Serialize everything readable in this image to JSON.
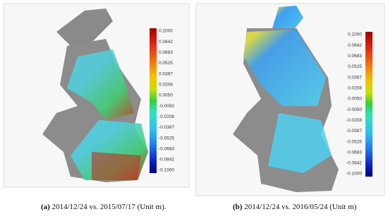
{
  "panels": [
    {
      "label": "(a)",
      "caption": "2014/12/24 vs. 2015/07/17 (Unit m).",
      "colorbar_labels": [
        "0.1000",
        "0.0842",
        "0.0683",
        "0.0525",
        "0.0367",
        "0.0208",
        "0.0050",
        "-0.0050",
        "-0.0208",
        "-0.0367",
        "-0.0525",
        "-0.0683",
        "-0.0842",
        "-0.1000"
      ]
    },
    {
      "label": "(b)",
      "caption": "2014/12/24 vs. 2016/05/24 (Unit m)",
      "colorbar_labels": [
        "0.1000",
        "0.0842",
        "0.0683",
        "0.0525",
        "0.0367",
        "0.0208",
        "0.0050",
        "-0.0050",
        "-0.0208",
        "-0.0367",
        "-0.0525",
        "-0.0683",
        "-0.0842",
        "-0.1000"
      ]
    }
  ]
}
